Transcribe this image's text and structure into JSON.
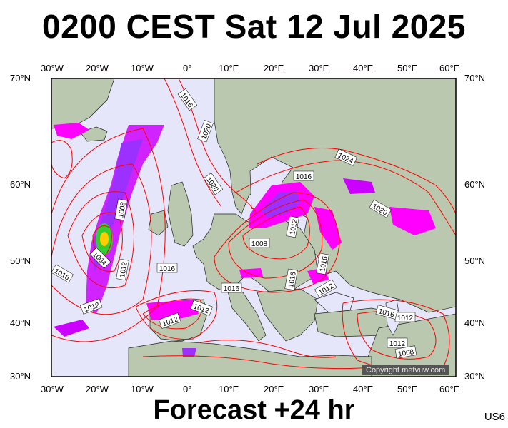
{
  "title": "0200 CEST Sat 12 Jul 2025",
  "footer": "Forecast +24 hr",
  "code": "US6",
  "copyright": "Copyright metvuw.com",
  "lon_labels": [
    "30°W",
    "20°W",
    "10°W",
    "0°",
    "10°E",
    "20°E",
    "30°E",
    "40°E",
    "50°E",
    "60°E"
  ],
  "lat_labels": [
    "70°N",
    "60°N",
    "50°N",
    "40°N",
    "30°N"
  ],
  "isobar_labels": [
    "1016",
    "1020",
    "1020",
    "1024",
    "1016",
    "1008",
    "1004",
    "1012",
    "1016",
    "1008",
    "1012",
    "1016",
    "1016",
    "1016",
    "1012",
    "1016",
    "1012",
    "1012",
    "1012",
    "1020",
    "1016",
    "1012",
    "1012",
    "1008"
  ],
  "colors": {
    "ocean": "#e6e6fa",
    "land": "#b9c8ae",
    "isobar": "#ff0000",
    "rain_magenta": "#ff00ff",
    "rain_purple": "#9b30ff"
  }
}
